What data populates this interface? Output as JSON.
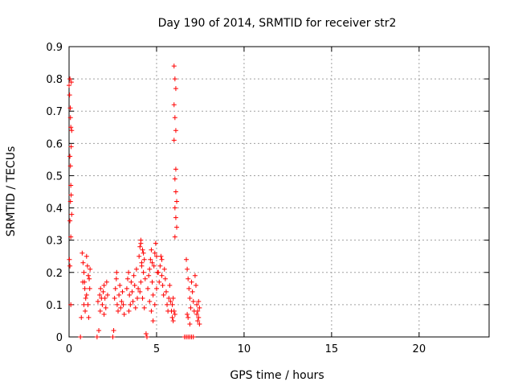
{
  "chart_data": {
    "type": "scatter",
    "title": "Day 190 of 2014, SRMTID for receiver str2",
    "xlabel": "GPS time / hours",
    "ylabel": "SRMTID / TECUs",
    "xlim": [
      0,
      24
    ],
    "ylim": [
      0,
      0.9
    ],
    "xticks": [
      0,
      5,
      10,
      15,
      20
    ],
    "xtick_labels": [
      "0",
      "5",
      "10",
      "15",
      "20"
    ],
    "yticks": [
      0,
      0.1,
      0.2,
      0.3,
      0.4,
      0.5,
      0.6,
      0.7,
      0.8,
      0.9
    ],
    "ytick_labels": [
      "0",
      "0.1",
      "0.2",
      "0.3",
      "0.4",
      "0.5",
      "0.6",
      "0.7",
      "0.8",
      "0.9"
    ],
    "grid": true,
    "marker": "+",
    "color": "#ff0000",
    "series": [
      {
        "name": "SRMTID",
        "points": [
          [
            0.0,
            0.78
          ],
          [
            0.03,
            0.75
          ],
          [
            0.05,
            0.8
          ],
          [
            0.07,
            0.71
          ],
          [
            0.1,
            0.65
          ],
          [
            0.12,
            0.59
          ],
          [
            0.05,
            0.56
          ],
          [
            0.08,
            0.53
          ],
          [
            0.1,
            0.47
          ],
          [
            0.12,
            0.44
          ],
          [
            0.08,
            0.42
          ],
          [
            0.15,
            0.38
          ],
          [
            0.05,
            0.36
          ],
          [
            0.1,
            0.31
          ],
          [
            0.02,
            0.24
          ],
          [
            0.05,
            0.22
          ],
          [
            0.1,
            0.1
          ],
          [
            0.13,
            0.79
          ],
          [
            0.08,
            0.68
          ],
          [
            0.15,
            0.64
          ],
          [
            0.65,
            0.0
          ],
          [
            0.75,
            0.26
          ],
          [
            0.8,
            0.23
          ],
          [
            0.85,
            0.2
          ],
          [
            0.78,
            0.17
          ],
          [
            0.9,
            0.15
          ],
          [
            0.95,
            0.12
          ],
          [
            0.85,
            0.1
          ],
          [
            0.92,
            0.08
          ],
          [
            1.0,
            0.25
          ],
          [
            1.05,
            0.22
          ],
          [
            1.1,
            0.19
          ],
          [
            1.15,
            0.18
          ],
          [
            1.0,
            0.13
          ],
          [
            1.08,
            0.1
          ],
          [
            1.12,
            0.06
          ],
          [
            0.7,
            0.06
          ],
          [
            1.2,
            0.21
          ],
          [
            1.18,
            0.15
          ],
          [
            0.88,
            0.17
          ],
          [
            1.6,
            0.0
          ],
          [
            1.7,
            0.02
          ],
          [
            1.65,
            0.11
          ],
          [
            1.75,
            0.13
          ],
          [
            1.8,
            0.15
          ],
          [
            1.85,
            0.12
          ],
          [
            1.9,
            0.1
          ],
          [
            1.95,
            0.14
          ],
          [
            2.0,
            0.16
          ],
          [
            2.05,
            0.12
          ],
          [
            2.1,
            0.09
          ],
          [
            2.15,
            0.17
          ],
          [
            2.2,
            0.13
          ],
          [
            1.78,
            0.08
          ],
          [
            2.0,
            0.07
          ],
          [
            2.5,
            0.0
          ],
          [
            2.55,
            0.02
          ],
          [
            2.6,
            0.12
          ],
          [
            2.65,
            0.15
          ],
          [
            2.7,
            0.18
          ],
          [
            2.75,
            0.1
          ],
          [
            2.8,
            0.08
          ],
          [
            2.85,
            0.13
          ],
          [
            2.9,
            0.16
          ],
          [
            2.95,
            0.09
          ],
          [
            3.0,
            0.11
          ],
          [
            3.05,
            0.14
          ],
          [
            3.1,
            0.1
          ],
          [
            3.15,
            0.07
          ],
          [
            2.72,
            0.2
          ],
          [
            3.3,
            0.15
          ],
          [
            3.35,
            0.18
          ],
          [
            3.4,
            0.2
          ],
          [
            3.45,
            0.13
          ],
          [
            3.5,
            0.1
          ],
          [
            3.55,
            0.17
          ],
          [
            3.6,
            0.14
          ],
          [
            3.65,
            0.11
          ],
          [
            3.7,
            0.19
          ],
          [
            3.75,
            0.16
          ],
          [
            3.8,
            0.09
          ],
          [
            3.85,
            0.21
          ],
          [
            3.9,
            0.12
          ],
          [
            3.95,
            0.15
          ],
          [
            3.42,
            0.08
          ],
          [
            4.0,
            0.25
          ],
          [
            4.05,
            0.28
          ],
          [
            4.1,
            0.3
          ],
          [
            4.15,
            0.23
          ],
          [
            4.2,
            0.27
          ],
          [
            4.25,
            0.2
          ],
          [
            4.3,
            0.24
          ],
          [
            4.1,
            0.17
          ],
          [
            4.2,
            0.12
          ],
          [
            4.3,
            0.09
          ],
          [
            4.05,
            0.14
          ],
          [
            4.15,
            0.22
          ],
          [
            4.25,
            0.26
          ],
          [
            4.1,
            0.29
          ],
          [
            4.35,
            0.18
          ],
          [
            4.4,
            0.01
          ],
          [
            4.45,
            0.0
          ],
          [
            4.5,
            0.15
          ],
          [
            4.55,
            0.19
          ],
          [
            4.6,
            0.21
          ],
          [
            4.65,
            0.24
          ],
          [
            4.7,
            0.27
          ],
          [
            4.75,
            0.17
          ],
          [
            4.8,
            0.13
          ],
          [
            4.85,
            0.22
          ],
          [
            4.9,
            0.26
          ],
          [
            4.95,
            0.29
          ],
          [
            5.0,
            0.25
          ],
          [
            5.05,
            0.2
          ],
          [
            4.6,
            0.11
          ],
          [
            4.7,
            0.08
          ],
          [
            4.8,
            0.05
          ],
          [
            4.9,
            0.1
          ],
          [
            5.0,
            0.15
          ],
          [
            4.75,
            0.23
          ],
          [
            5.1,
            0.2
          ],
          [
            5.15,
            0.17
          ],
          [
            5.2,
            0.22
          ],
          [
            5.25,
            0.25
          ],
          [
            5.3,
            0.19
          ],
          [
            5.35,
            0.16
          ],
          [
            5.4,
            0.13
          ],
          [
            5.45,
            0.21
          ],
          [
            5.5,
            0.18
          ],
          [
            5.55,
            0.14
          ],
          [
            5.6,
            0.1
          ],
          [
            5.65,
            0.08
          ],
          [
            5.7,
            0.12
          ],
          [
            5.75,
            0.16
          ],
          [
            5.3,
            0.24
          ],
          [
            5.8,
            0.11
          ],
          [
            5.85,
            0.08
          ],
          [
            5.9,
            0.06
          ],
          [
            5.95,
            0.05
          ],
          [
            6.0,
            0.08
          ],
          [
            5.9,
            0.1
          ],
          [
            6.05,
            0.07
          ],
          [
            5.95,
            0.12
          ],
          [
            6.0,
            0.84
          ],
          [
            6.05,
            0.8
          ],
          [
            6.1,
            0.77
          ],
          [
            6.0,
            0.72
          ],
          [
            6.05,
            0.68
          ],
          [
            6.1,
            0.64
          ],
          [
            6.0,
            0.61
          ],
          [
            6.1,
            0.52
          ],
          [
            6.05,
            0.49
          ],
          [
            6.1,
            0.45
          ],
          [
            6.15,
            0.42
          ],
          [
            6.05,
            0.4
          ],
          [
            6.1,
            0.37
          ],
          [
            6.15,
            0.34
          ],
          [
            6.05,
            0.31
          ],
          [
            6.6,
            0.0
          ],
          [
            6.7,
            0.0
          ],
          [
            6.8,
            0.0
          ],
          [
            6.9,
            0.0
          ],
          [
            7.0,
            0.0
          ],
          [
            7.1,
            0.0
          ],
          [
            6.7,
            0.24
          ],
          [
            6.75,
            0.21
          ],
          [
            6.8,
            0.18
          ],
          [
            6.85,
            0.15
          ],
          [
            6.9,
            0.12
          ],
          [
            6.95,
            0.09
          ],
          [
            6.8,
            0.06
          ],
          [
            6.9,
            0.04
          ],
          [
            7.0,
            0.17
          ],
          [
            7.05,
            0.14
          ],
          [
            7.1,
            0.11
          ],
          [
            7.15,
            0.08
          ],
          [
            7.2,
            0.19
          ],
          [
            7.25,
            0.16
          ],
          [
            6.75,
            0.07
          ],
          [
            7.3,
            0.1
          ],
          [
            7.35,
            0.08
          ],
          [
            7.4,
            0.06
          ],
          [
            7.45,
            0.04
          ],
          [
            7.3,
            0.07
          ],
          [
            7.4,
            0.11
          ],
          [
            7.35,
            0.05
          ],
          [
            7.45,
            0.09
          ]
        ]
      }
    ]
  }
}
